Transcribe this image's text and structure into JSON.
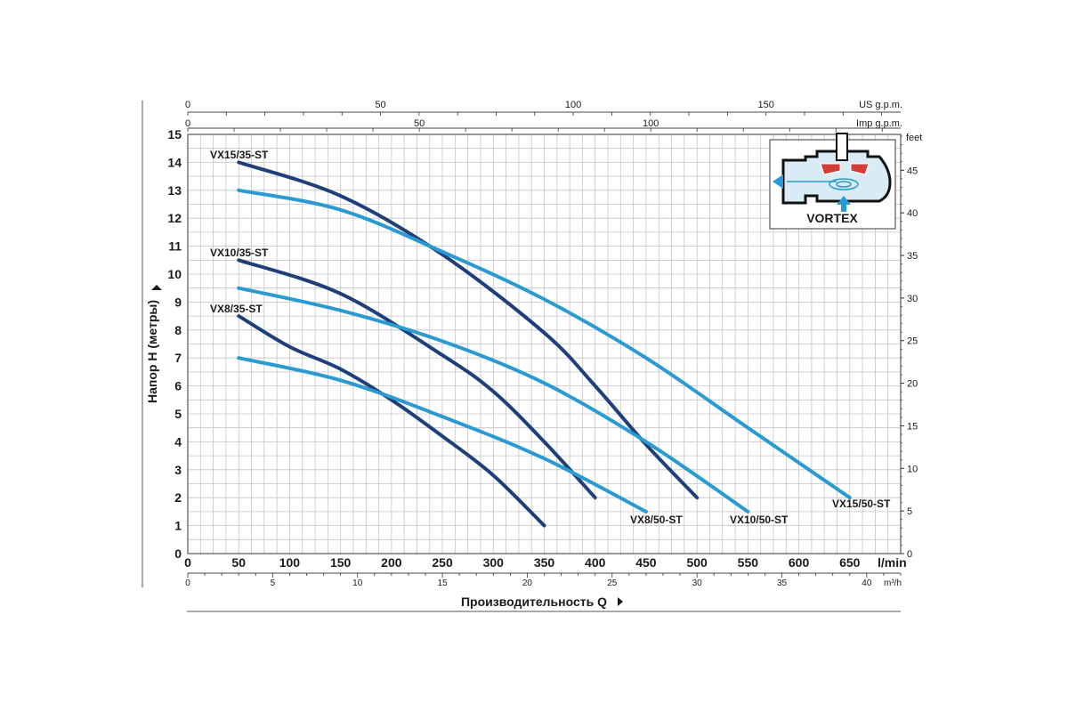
{
  "chart_data": {
    "type": "line",
    "title": "",
    "xlabel": "Производительность Q",
    "ylabel": "Напор H (метры)",
    "x_unit": "l/min",
    "xlim": [
      0,
      700
    ],
    "ylim": [
      0,
      15
    ],
    "grid": true,
    "x_ticks": [
      0,
      50,
      100,
      150,
      200,
      250,
      300,
      350,
      400,
      450,
      500,
      550,
      600,
      650
    ],
    "y_ticks": [
      0,
      1,
      2,
      3,
      4,
      5,
      6,
      7,
      8,
      9,
      10,
      11,
      12,
      13,
      14,
      15
    ],
    "secondary_axes": {
      "us_gpm": {
        "label": "US g.p.m.",
        "ticks": [
          0,
          50,
          100,
          150
        ]
      },
      "imp_gpm": {
        "label": "Imp g.p.m.",
        "ticks": [
          0,
          50,
          100
        ]
      },
      "feet": {
        "label": "feet",
        "ticks": [
          0,
          5,
          10,
          15,
          20,
          25,
          30,
          35,
          40,
          45
        ]
      },
      "m3h": {
        "label": "m³/h",
        "ticks": [
          0,
          5,
          10,
          15,
          20,
          25,
          30,
          35,
          40
        ]
      }
    },
    "series": [
      {
        "name": "VX15/35-ST",
        "color": "#1e3f7a",
        "x": [
          50,
          150,
          250,
          350,
          400,
          450,
          500
        ],
        "y": [
          14.0,
          12.8,
          10.7,
          7.9,
          6.0,
          3.9,
          2.0
        ]
      },
      {
        "name": "VX10/35-ST",
        "color": "#1e3f7a",
        "x": [
          50,
          150,
          250,
          300,
          350,
          400
        ],
        "y": [
          10.5,
          9.3,
          7.1,
          5.8,
          4.0,
          2.0
        ]
      },
      {
        "name": "VX8/35-ST",
        "color": "#1e3f7a",
        "x": [
          50,
          100,
          150,
          200,
          250,
          300,
          350
        ],
        "y": [
          8.5,
          7.4,
          6.6,
          5.5,
          4.2,
          2.8,
          1.0
        ]
      },
      {
        "name": "VX15/50-ST",
        "color": "#2a9ad2",
        "x": [
          50,
          150,
          250,
          350,
          450,
          550,
          650
        ],
        "y": [
          13.0,
          12.3,
          10.8,
          9.1,
          7.0,
          4.5,
          2.0
        ]
      },
      {
        "name": "VX10/50-ST",
        "color": "#2a9ad2",
        "x": [
          50,
          150,
          250,
          350,
          450,
          550
        ],
        "y": [
          9.5,
          8.7,
          7.6,
          6.1,
          4.0,
          1.5
        ]
      },
      {
        "name": "VX8/50-ST",
        "color": "#2a9ad2",
        "x": [
          50,
          150,
          250,
          350,
          450
        ],
        "y": [
          7.0,
          6.2,
          4.9,
          3.4,
          1.5
        ]
      }
    ]
  },
  "inset": {
    "label": "VORTEX",
    "colors": {
      "flow": "#2a9ad2",
      "impeller": "#d43c36",
      "outline": "#111111"
    }
  },
  "colors": {
    "dark_curve": "#1e3f7a",
    "light_curve": "#2a9ad2",
    "grid": "#c4c4c4"
  }
}
